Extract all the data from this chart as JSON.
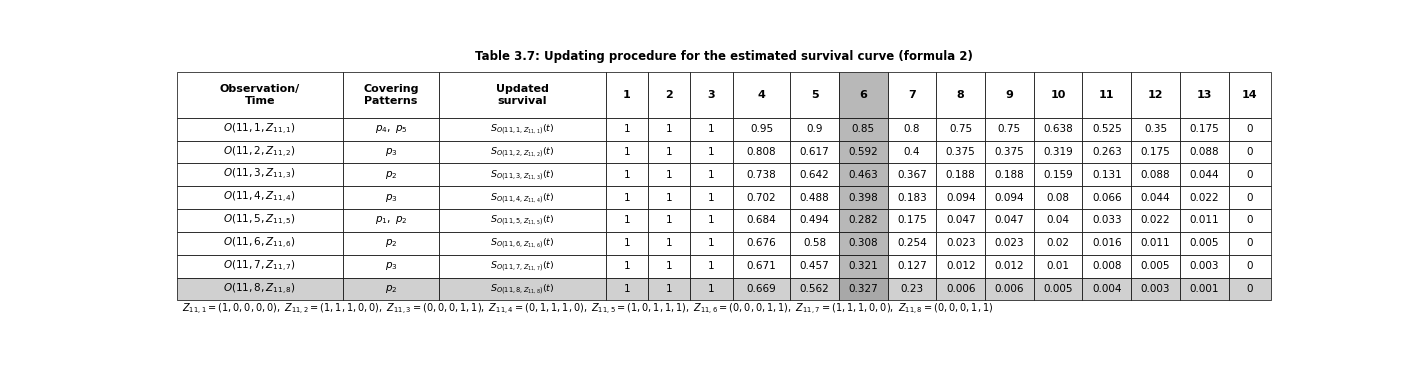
{
  "title": "Table 3.7: Updating procedure for the estimated survival curve (formula 2)",
  "col_headers": [
    "Observation/\nTime",
    "Covering\nPatterns",
    "Updated\nsurvival",
    "1",
    "2",
    "3",
    "4",
    "5",
    "6",
    "7",
    "8",
    "9",
    "10",
    "11",
    "12",
    "13",
    "14"
  ],
  "data": [
    [
      1,
      1,
      1,
      0.95,
      0.9,
      0.85,
      0.8,
      0.75,
      0.75,
      0.638,
      0.525,
      0.35,
      0.175,
      0
    ],
    [
      1,
      1,
      1,
      0.808,
      0.617,
      0.592,
      0.4,
      0.375,
      0.375,
      0.319,
      0.263,
      0.175,
      0.088,
      0
    ],
    [
      1,
      1,
      1,
      0.738,
      0.642,
      0.463,
      0.367,
      0.188,
      0.188,
      0.159,
      0.131,
      0.088,
      0.044,
      0
    ],
    [
      1,
      1,
      1,
      0.702,
      0.488,
      0.398,
      0.183,
      0.094,
      0.094,
      0.08,
      0.066,
      0.044,
      0.022,
      0
    ],
    [
      1,
      1,
      1,
      0.684,
      0.494,
      0.282,
      0.175,
      0.047,
      0.047,
      0.04,
      0.033,
      0.022,
      0.011,
      0
    ],
    [
      1,
      1,
      1,
      0.676,
      0.58,
      0.308,
      0.254,
      0.023,
      0.023,
      0.02,
      0.016,
      0.011,
      0.005,
      0
    ],
    [
      1,
      1,
      1,
      0.671,
      0.457,
      0.321,
      0.127,
      0.012,
      0.012,
      0.01,
      0.008,
      0.005,
      0.003,
      0
    ],
    [
      1,
      1,
      1,
      0.669,
      0.562,
      0.327,
      0.23,
      0.006,
      0.006,
      0.005,
      0.004,
      0.003,
      0.001,
      0
    ]
  ],
  "obs_math": [
    "$O(11,1,Z_{11,1})$",
    "$O(11,2,Z_{11,2})$",
    "$O(11,3,Z_{11,3})$",
    "$O(11,4,Z_{11,4})$",
    "$O(11,5,Z_{11,5})$",
    "$O(11,6,Z_{11,6})$",
    "$O(11,7,Z_{11,7})$",
    "$O(11,8,Z_{11,8})$"
  ],
  "covering_math": [
    "$p_4,\\ p_5$",
    "$p_3$",
    "$p_2$",
    "$p_3$",
    "$p_1,\\ p_2$",
    "$p_2$",
    "$p_3$",
    "$p_2$"
  ],
  "survival_math": [
    "$S_{O(11,1,Z_{11,1})}(t)$",
    "$S_{O(11,2,Z_{11,2})}(t)$",
    "$S_{O(11,3,Z_{11,3})}(t)$",
    "$S_{O(11,4,Z_{11,4})}(t)$",
    "$S_{O(11,5,Z_{11,5})}(t)$",
    "$S_{O(11,6,Z_{11,6})}(t)$",
    "$S_{O(11,7,Z_{11,7})}(t)$",
    "$S_{O(11,8,Z_{11,8})}(t)$"
  ],
  "footnote": "$Z_{11,1} = (1,0,0,0,0),\\ Z_{11,2} = (1,1,1,0,0),\\ Z_{11,3} = (0,0,0,1,1),\\ Z_{11,4} = (0,1,1,1,0),\\ Z_{11,5} = (1,0,1,1,1),\\ Z_{11,6} = (0,0,0,1,1),\\ Z_{11,7} = (1,1,1,0,0),\\ Z_{11,8} = (0,0,0,1,1)$",
  "highlighted_col_table_idx": 8,
  "highlighted_row_idx": 7,
  "col_widths_raw": [
    130,
    75,
    130,
    33,
    33,
    33,
    45,
    38,
    38,
    38,
    38,
    38,
    38,
    38,
    38,
    38,
    33
  ],
  "bg_white": "#ffffff",
  "bg_col6": "#b8b8b8",
  "bg_row8": "#d0d0d0",
  "bg_both": "#a8a8a8",
  "border_color": "#000000",
  "title_fontsize": 8.5,
  "header_fontsize": 8.0,
  "cell_fontsize": 7.5,
  "surv_fontsize": 6.8,
  "footnote_fontsize": 7.0
}
